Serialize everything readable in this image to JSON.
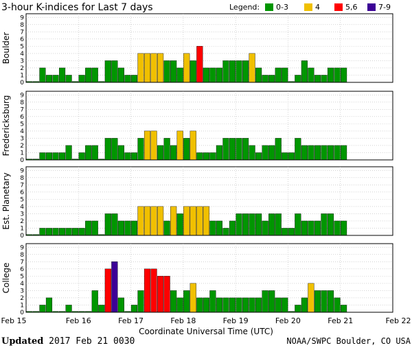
{
  "chart_data": {
    "type": "bar",
    "title": "3-hour K-indices for Last 7 days",
    "legend": {
      "label": "Legend:",
      "entries": [
        {
          "label": "0-3",
          "color": "#009600"
        },
        {
          "label": "4",
          "color": "#f0c000"
        },
        {
          "label": "5,6",
          "color": "#ff0000"
        },
        {
          "label": "7-9",
          "color": "#3c0096"
        }
      ]
    },
    "xlabel": "Coordinate Universal Time (UTC)",
    "x_ticks": [
      "Feb 15",
      "Feb 16",
      "Feb 17",
      "Feb 18",
      "Feb 19",
      "Feb 20",
      "Feb 21",
      "Feb 22"
    ],
    "ylim": [
      0,
      9
    ],
    "y_ticks": [
      "0",
      "1",
      "2",
      "3",
      "4",
      "5",
      "6",
      "7",
      "8",
      "9"
    ],
    "series": [
      {
        "name": "Boulder",
        "values": [
          0,
          0,
          2,
          1,
          1,
          2,
          1,
          0,
          1,
          2,
          2,
          0,
          3,
          3,
          2,
          1,
          1,
          4,
          4,
          4,
          4,
          3,
          3,
          2,
          4,
          3,
          5,
          2,
          2,
          2,
          3,
          3,
          3,
          3,
          4,
          2,
          1,
          1,
          2,
          2,
          0,
          1,
          3,
          2,
          1,
          1,
          2,
          2,
          2
        ]
      },
      {
        "name": "Fredericksburg",
        "values": [
          0,
          0,
          1,
          1,
          1,
          1,
          2,
          0,
          1,
          2,
          2,
          0,
          3,
          3,
          2,
          1,
          1,
          3,
          4,
          4,
          2,
          3,
          2,
          4,
          3,
          4,
          1,
          1,
          1,
          2,
          3,
          3,
          3,
          3,
          2,
          1,
          2,
          2,
          3,
          1,
          1,
          3,
          2,
          2,
          2,
          2,
          2,
          2,
          2
        ]
      },
      {
        "name": "Est. Planetary",
        "values": [
          0,
          0,
          1,
          1,
          1,
          1,
          1,
          1,
          1,
          2,
          2,
          0,
          3,
          3,
          2,
          2,
          2,
          4,
          4,
          4,
          4,
          2,
          4,
          3,
          4,
          4,
          4,
          4,
          2,
          2,
          1,
          2,
          3,
          3,
          3,
          3,
          2,
          3,
          3,
          1,
          1,
          3,
          2,
          2,
          2,
          3,
          3,
          2,
          2
        ]
      },
      {
        "name": "College",
        "values": [
          0,
          0,
          1,
          2,
          0,
          0,
          1,
          0,
          0,
          0,
          3,
          1,
          6,
          7,
          2,
          0,
          1,
          3,
          6,
          6,
          5,
          5,
          3,
          2,
          3,
          4,
          2,
          2,
          3,
          2,
          2,
          2,
          2,
          2,
          2,
          2,
          3,
          3,
          2,
          2,
          0,
          1,
          2,
          4,
          3,
          3,
          3,
          2,
          1
        ]
      }
    ]
  },
  "footer": {
    "updated_label": "Updated",
    "updated_time": "2017 Feb 21 0030",
    "credit": "NOAA/SWPC Boulder, CO USA"
  }
}
